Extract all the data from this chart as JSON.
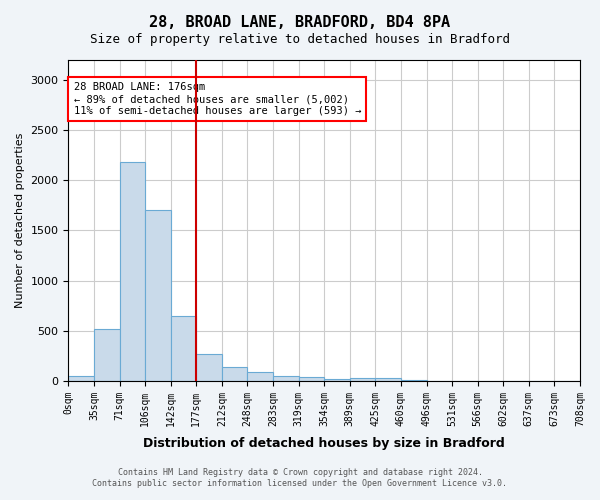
{
  "title": "28, BROAD LANE, BRADFORD, BD4 8PA",
  "subtitle": "Size of property relative to detached houses in Bradford",
  "xlabel": "Distribution of detached houses by size in Bradford",
  "ylabel": "Number of detached properties",
  "bin_labels": [
    "0sqm",
    "35sqm",
    "71sqm",
    "106sqm",
    "142sqm",
    "177sqm",
    "212sqm",
    "248sqm",
    "283sqm",
    "319sqm",
    "354sqm",
    "389sqm",
    "425sqm",
    "460sqm",
    "496sqm",
    "531sqm",
    "566sqm",
    "602sqm",
    "637sqm",
    "673sqm",
    "708sqm"
  ],
  "bar_heights": [
    50,
    520,
    2180,
    1700,
    650,
    270,
    140,
    85,
    45,
    35,
    15,
    30,
    25,
    10,
    0,
    0,
    0,
    0,
    0,
    0
  ],
  "bar_color": "#c9daea",
  "bar_edge_color": "#6aaad4",
  "ylim": [
    0,
    3200
  ],
  "yticks": [
    0,
    500,
    1000,
    1500,
    2000,
    2500,
    3000
  ],
  "property_size": 176,
  "red_line_bin_index": 5,
  "annotation_text": "28 BROAD LANE: 176sqm\n← 89% of detached houses are smaller (5,002)\n11% of semi-detached houses are larger (593) →",
  "annotation_box_color": "white",
  "annotation_box_edge_color": "red",
  "red_line_color": "#cc0000",
  "footer_line1": "Contains HM Land Registry data © Crown copyright and database right 2024.",
  "footer_line2": "Contains public sector information licensed under the Open Government Licence v3.0.",
  "background_color": "#f0f4f8",
  "plot_bg_color": "white",
  "grid_color": "#cccccc"
}
